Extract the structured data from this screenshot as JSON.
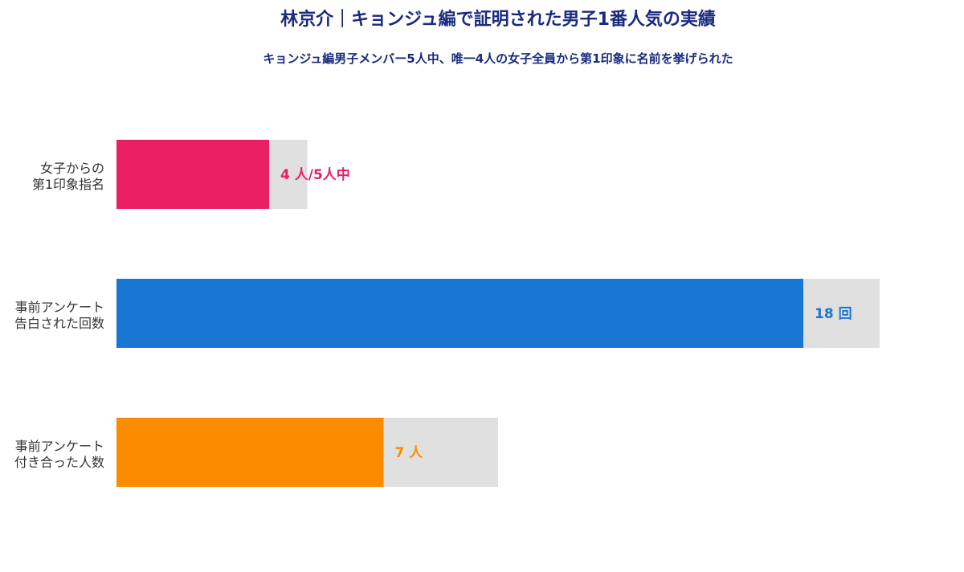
{
  "chart_data": {
    "type": "bar",
    "orientation": "horizontal",
    "title": "林京介｜キョンジュ編で証明された男子1番人気の実績",
    "subtitle": "キョンジュ編男子メンバー5人中、唯一4人の女子全員から第1印象に名前を挙げられた",
    "xlabel": "",
    "ylabel": "",
    "grid": false,
    "legend": "none",
    "categories": [
      [
        "女子からの",
        "第1印象指名"
      ],
      [
        "事前アンケート",
        "告白された回数"
      ],
      [
        "事前アンケート",
        "付き合った人数"
      ]
    ],
    "series": [
      {
        "values": [
          4,
          18,
          7
        ]
      }
    ],
    "max_values": [
      5,
      20,
      10
    ],
    "data_labels": [
      "4 人/5人中",
      "18 回",
      "7 人"
    ],
    "colors": [
      "#e91e63",
      "#1976d2",
      "#fb8c00"
    ],
    "background_color": "#e0e0e0"
  }
}
